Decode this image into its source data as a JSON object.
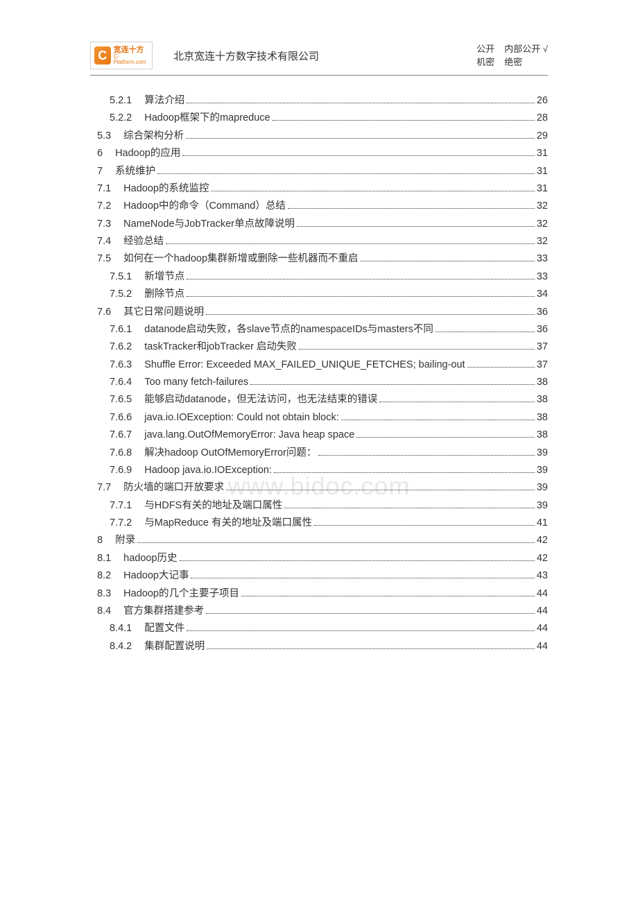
{
  "header": {
    "logo_letter": "C",
    "logo_cn": "宽连十方",
    "logo_en": "C-Platform.com",
    "company": "北京宽连十方数字技术有限公司",
    "class_row1_a": "公开",
    "class_row1_b": "内部公开 √",
    "class_row2_a": "机密",
    "class_row2_b": "绝密"
  },
  "watermark": "www.bidoc.com",
  "toc": [
    {
      "indent": 2,
      "num": "5.2.1",
      "title": "算法介绍",
      "page": "26"
    },
    {
      "indent": 2,
      "num": "5.2.2",
      "title": "Hadoop框架下的mapreduce",
      "page": "28"
    },
    {
      "indent": 1,
      "num": "5.3",
      "title": "综合架构分析",
      "page": "29"
    },
    {
      "indent": 0,
      "num": "6",
      "title": "Hadoop的应用",
      "page": "31"
    },
    {
      "indent": 0,
      "num": "7",
      "title": "系统维护",
      "page": "31"
    },
    {
      "indent": 1,
      "num": "7.1",
      "title": "Hadoop的系统监控",
      "page": "31"
    },
    {
      "indent": 1,
      "num": "7.2",
      "title": "Hadoop中的命令（Command）总结",
      "page": "32"
    },
    {
      "indent": 1,
      "num": "7.3",
      "title": "NameNode与JobTracker单点故障说明",
      "page": "32"
    },
    {
      "indent": 1,
      "num": "7.4",
      "title": "经验总结",
      "page": "32"
    },
    {
      "indent": 1,
      "num": "7.5",
      "title": "如何在一个hadoop集群新增或删除一些机器而不重启",
      "page": "33"
    },
    {
      "indent": 2,
      "num": "7.5.1",
      "title": "新增节点",
      "page": "33"
    },
    {
      "indent": 2,
      "num": "7.5.2",
      "title": "删除节点",
      "page": "34"
    },
    {
      "indent": 1,
      "num": "7.6",
      "title": "其它日常问题说明",
      "page": "36"
    },
    {
      "indent": 2,
      "num": "7.6.1",
      "title": "datanode启动失败，各slave节点的namespaceIDs与masters不同",
      "page": "36"
    },
    {
      "indent": 2,
      "num": "7.6.2",
      "title": "taskTracker和jobTracker 启动失败",
      "page": "37"
    },
    {
      "indent": 2,
      "num": "7.6.3",
      "title": "Shuffle Error: Exceeded MAX_FAILED_UNIQUE_FETCHES; bailing-out",
      "page": "37"
    },
    {
      "indent": 2,
      "num": "7.6.4",
      "title": "Too many fetch-failures",
      "page": "38"
    },
    {
      "indent": 2,
      "num": "7.6.5",
      "title": "能够启动datanode，但无法访问，也无法结束的错误",
      "page": "38"
    },
    {
      "indent": 2,
      "num": "7.6.6",
      "title": "java.io.IOException: Could not obtain block:",
      "page": "38"
    },
    {
      "indent": 2,
      "num": "7.6.7",
      "title": "java.lang.OutOfMemoryError: Java heap space",
      "page": "38"
    },
    {
      "indent": 2,
      "num": "7.6.8",
      "title": "解决hadoop OutOfMemoryError问题：",
      "page": "39"
    },
    {
      "indent": 2,
      "num": "7.6.9",
      "title": "Hadoop java.io.IOException:",
      "page": "39"
    },
    {
      "indent": 1,
      "num": "7.7",
      "title": "防火墙的端口开放要求",
      "page": "39"
    },
    {
      "indent": 2,
      "num": "7.7.1",
      "title": "与HDFS有关的地址及端口属性",
      "page": "39"
    },
    {
      "indent": 2,
      "num": "7.7.2",
      "title": "与MapReduce 有关的地址及端口属性",
      "page": "41"
    },
    {
      "indent": 0,
      "num": "8",
      "title": "附录",
      "page": "42"
    },
    {
      "indent": 1,
      "num": "8.1",
      "title": "hadoop历史",
      "page": "42"
    },
    {
      "indent": 1,
      "num": "8.2",
      "title": "Hadoop大记事",
      "page": "43"
    },
    {
      "indent": 1,
      "num": "8.3",
      "title": "Hadoop的几个主要子项目",
      "page": "44"
    },
    {
      "indent": 1,
      "num": "8.4",
      "title": "官方集群搭建参考",
      "page": "44"
    },
    {
      "indent": 2,
      "num": "8.4.1",
      "title": "配置文件",
      "page": "44"
    },
    {
      "indent": 2,
      "num": "8.4.2",
      "title": "集群配置说明",
      "page": "44"
    }
  ]
}
